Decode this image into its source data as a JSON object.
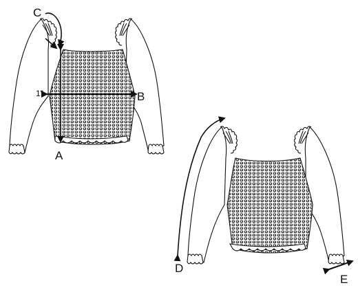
{
  "labels": {
    "a": "A",
    "b": "B",
    "c": "C",
    "d": "D",
    "e": "E",
    "one_inch": "1\""
  },
  "colors": {
    "line": "#111111",
    "fill": "#ffffff",
    "smock": "#222222"
  },
  "icons": [
    "front-view-garment",
    "back-view-garment",
    "measurement-arrow"
  ]
}
